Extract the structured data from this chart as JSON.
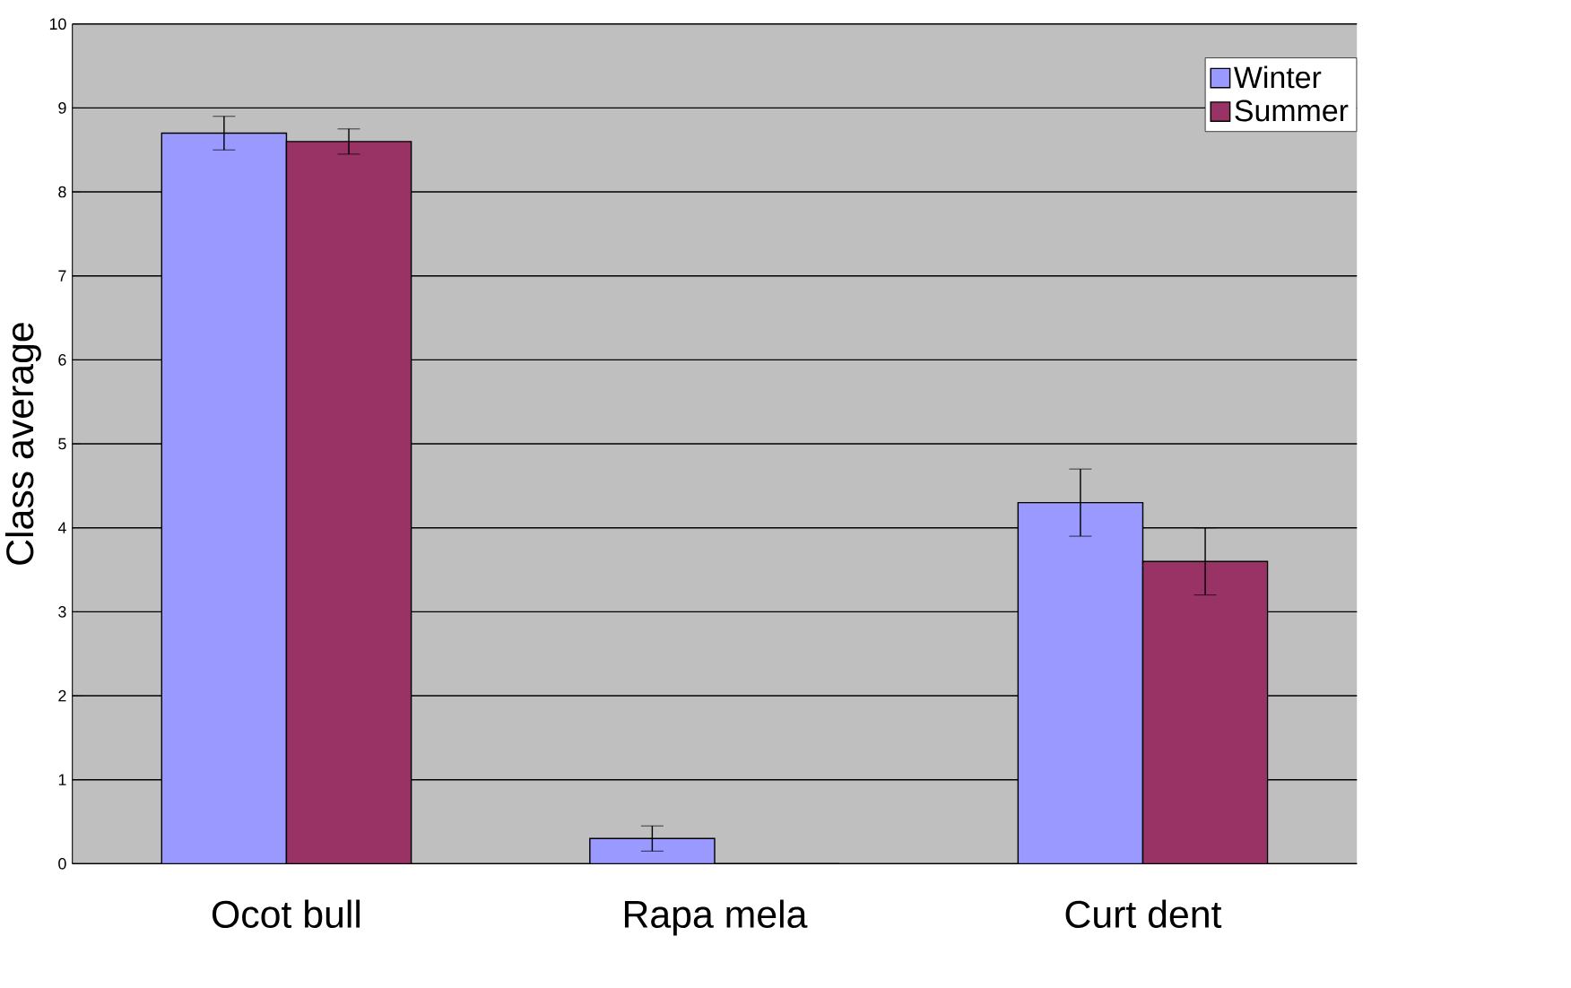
{
  "chart_data": {
    "type": "bar",
    "ylabel": "Class average",
    "categories": [
      "Ocot bull",
      "Rapa mela",
      "Curt dent"
    ],
    "series": [
      {
        "name": "Winter",
        "color": "#9999ff",
        "values": [
          8.7,
          0.3,
          4.3
        ],
        "errors": [
          0.2,
          0.15,
          0.4
        ]
      },
      {
        "name": "Summer",
        "color": "#993366",
        "values": [
          8.6,
          0,
          3.6
        ],
        "errors": [
          0.15,
          null,
          0.4
        ]
      }
    ],
    "ylim": [
      0,
      10
    ],
    "yticks": [
      0,
      1,
      2,
      3,
      4,
      5,
      6,
      7,
      8,
      9,
      10
    ],
    "grid": "y",
    "legend": "top right"
  }
}
